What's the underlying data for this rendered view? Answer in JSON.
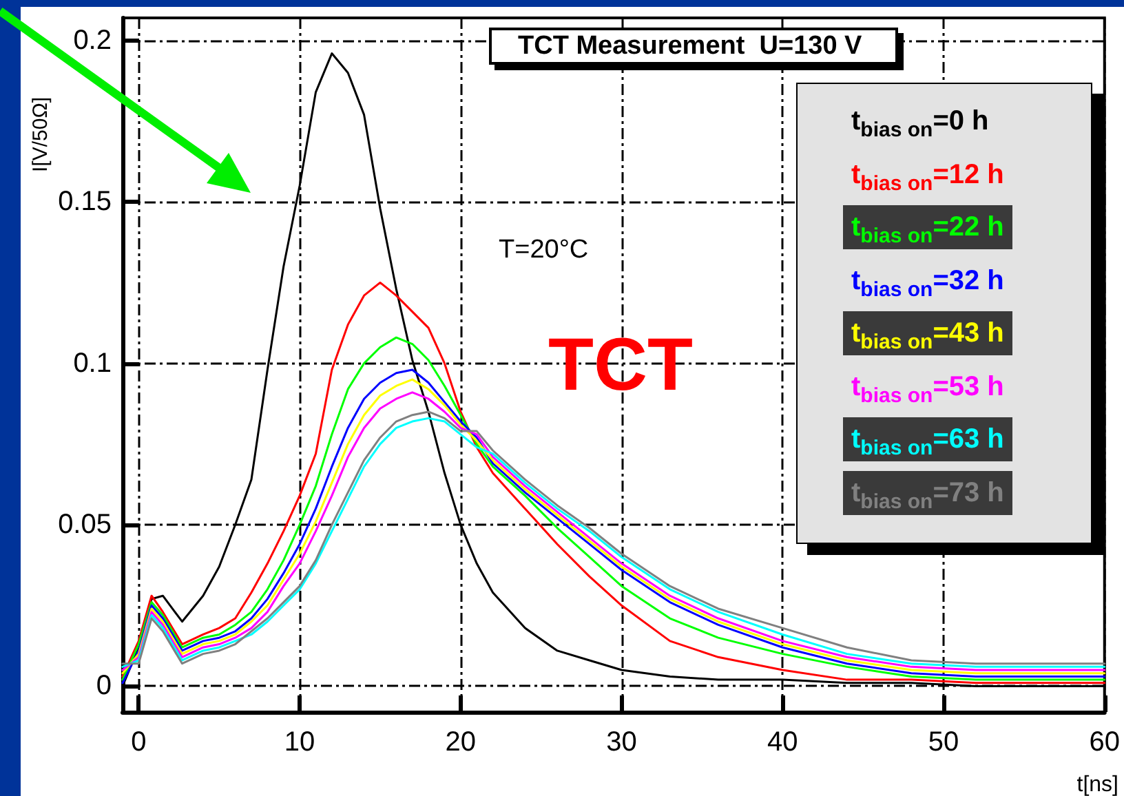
{
  "chart_data": {
    "type": "line",
    "title": "TCT Measurement  U=130 V",
    "xlabel": "t[ns]",
    "ylabel": "I[V/50Ω]",
    "annotations": [
      "T=20°C",
      "TCT"
    ],
    "x": [
      -1,
      0,
      0.8,
      1.5,
      2.7,
      4,
      5,
      6,
      7,
      8,
      9,
      10,
      11,
      12,
      13,
      14,
      15,
      16,
      17,
      18,
      19,
      20,
      21,
      22,
      24,
      26,
      28,
      30,
      33,
      36,
      40,
      44,
      48,
      52,
      56,
      60
    ],
    "series": [
      {
        "name": "t$_{bias on}$=0 h",
        "color": "#000000",
        "values": [
          0.0,
          0.012,
          0.027,
          0.028,
          0.02,
          0.028,
          0.037,
          0.05,
          0.064,
          0.098,
          0.13,
          0.155,
          0.184,
          0.196,
          0.19,
          0.177,
          0.148,
          0.123,
          0.101,
          0.085,
          0.066,
          0.05,
          0.038,
          0.029,
          0.018,
          0.011,
          0.008,
          0.005,
          0.003,
          0.002,
          0.002,
          0.001,
          0.001,
          0.0,
          0.0,
          0.0
        ]
      },
      {
        "name": "t$_{bias on}$=12 h",
        "color": "#ff0000",
        "values": [
          0.003,
          0.014,
          0.028,
          0.023,
          0.013,
          0.016,
          0.018,
          0.021,
          0.029,
          0.038,
          0.048,
          0.059,
          0.072,
          0.098,
          0.112,
          0.121,
          0.125,
          0.121,
          0.116,
          0.111,
          0.1,
          0.085,
          0.074,
          0.066,
          0.055,
          0.044,
          0.034,
          0.025,
          0.014,
          0.009,
          0.005,
          0.002,
          0.002,
          0.001,
          0.001,
          0.001
        ]
      },
      {
        "name": "t$_{bias on}$=22 h",
        "color": "#00ff00",
        "values": [
          0.002,
          0.013,
          0.026,
          0.022,
          0.012,
          0.015,
          0.016,
          0.019,
          0.023,
          0.03,
          0.039,
          0.05,
          0.062,
          0.078,
          0.092,
          0.1,
          0.105,
          0.108,
          0.106,
          0.101,
          0.093,
          0.084,
          0.075,
          0.068,
          0.059,
          0.049,
          0.04,
          0.031,
          0.021,
          0.015,
          0.01,
          0.006,
          0.003,
          0.002,
          0.002,
          0.002
        ]
      },
      {
        "name": "t$_{bias on}$=32 h",
        "color": "#0000ff",
        "values": [
          0.001,
          0.011,
          0.025,
          0.021,
          0.011,
          0.014,
          0.015,
          0.017,
          0.021,
          0.027,
          0.035,
          0.044,
          0.055,
          0.068,
          0.08,
          0.089,
          0.094,
          0.097,
          0.098,
          0.094,
          0.088,
          0.082,
          0.077,
          0.069,
          0.06,
          0.052,
          0.044,
          0.036,
          0.026,
          0.019,
          0.012,
          0.007,
          0.004,
          0.003,
          0.003,
          0.003
        ]
      },
      {
        "name": "t$_{bias on}$=43 h",
        "color": "#ffff00",
        "values": [
          0.004,
          0.01,
          0.024,
          0.02,
          0.01,
          0.013,
          0.014,
          0.016,
          0.02,
          0.025,
          0.033,
          0.041,
          0.051,
          0.063,
          0.075,
          0.084,
          0.09,
          0.093,
          0.095,
          0.092,
          0.087,
          0.081,
          0.076,
          0.07,
          0.061,
          0.053,
          0.045,
          0.037,
          0.027,
          0.02,
          0.013,
          0.008,
          0.005,
          0.004,
          0.004,
          0.004
        ]
      },
      {
        "name": "t$_{bias on}$=53 h",
        "color": "#ff00ff",
        "values": [
          0.005,
          0.009,
          0.023,
          0.019,
          0.009,
          0.012,
          0.013,
          0.015,
          0.018,
          0.023,
          0.031,
          0.038,
          0.048,
          0.059,
          0.071,
          0.08,
          0.086,
          0.089,
          0.091,
          0.089,
          0.085,
          0.08,
          0.078,
          0.071,
          0.062,
          0.054,
          0.046,
          0.038,
          0.028,
          0.021,
          0.014,
          0.009,
          0.006,
          0.005,
          0.005,
          0.005
        ]
      },
      {
        "name": "t$_{bias on}$=63 h",
        "color": "#00ffff",
        "values": [
          0.006,
          0.008,
          0.022,
          0.018,
          0.008,
          0.011,
          0.012,
          0.014,
          0.016,
          0.02,
          0.025,
          0.03,
          0.038,
          0.048,
          0.058,
          0.068,
          0.075,
          0.08,
          0.082,
          0.083,
          0.082,
          0.078,
          0.074,
          0.072,
          0.063,
          0.055,
          0.048,
          0.04,
          0.03,
          0.023,
          0.016,
          0.01,
          0.007,
          0.006,
          0.006,
          0.006
        ]
      },
      {
        "name": "t$_{bias on}$=73 h",
        "color": "#808080",
        "values": [
          0.007,
          0.007,
          0.021,
          0.017,
          0.007,
          0.01,
          0.011,
          0.013,
          0.017,
          0.021,
          0.026,
          0.031,
          0.039,
          0.05,
          0.06,
          0.07,
          0.077,
          0.082,
          0.084,
          0.085,
          0.083,
          0.079,
          0.079,
          0.073,
          0.064,
          0.056,
          0.049,
          0.041,
          0.031,
          0.024,
          0.018,
          0.012,
          0.008,
          0.007,
          0.007,
          0.007
        ]
      }
    ],
    "xlim": [
      -1,
      60
    ],
    "ylim": [
      -0.008,
      0.207
    ],
    "xticks": [
      0,
      10,
      20,
      30,
      40,
      50,
      60
    ],
    "yticks": [
      0,
      0.05,
      0.1,
      0.15,
      0.2
    ],
    "grid": true,
    "legend": "top right",
    "marker": "none",
    "line_style": "solid"
  }
}
